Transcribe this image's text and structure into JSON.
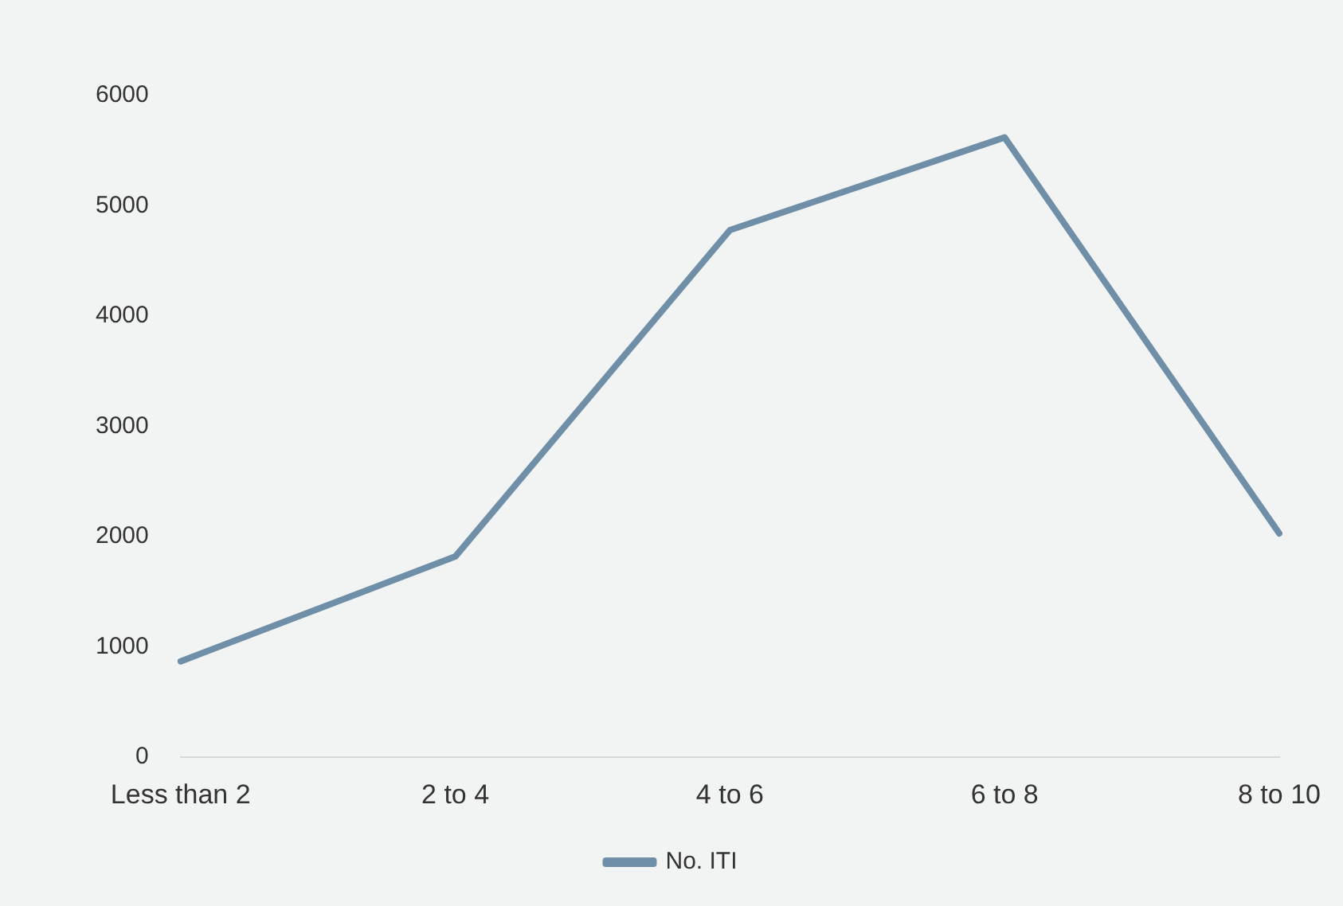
{
  "chart_data": {
    "type": "line",
    "categories": [
      "Less than 2",
      "2 to 4",
      "4 to 6",
      "6 to 8",
      "8 to 10"
    ],
    "series": [
      {
        "name": "No. ITI",
        "color": "#6f8fa8",
        "values": [
          870,
          1820,
          4780,
          5620,
          2030
        ]
      }
    ],
    "ylim": [
      0,
      6000
    ],
    "yticks": [
      0,
      1000,
      2000,
      3000,
      4000,
      5000,
      6000
    ],
    "grid": false,
    "legend": "bottom",
    "marker": "none"
  }
}
